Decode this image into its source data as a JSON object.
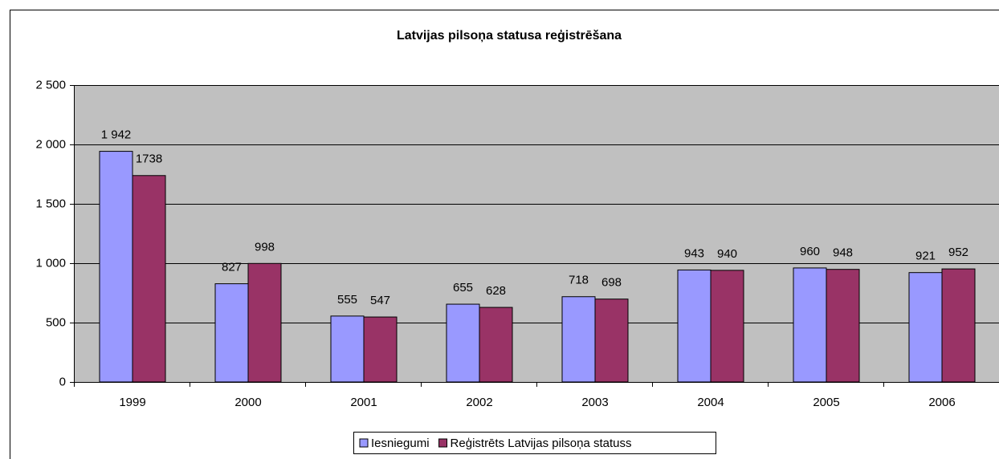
{
  "chart_data": {
    "type": "bar",
    "title": "Latvijas pilsoņa statusa reģistrēšana",
    "categories": [
      "1999",
      "2000",
      "2001",
      "2002",
      "2003",
      "2004",
      "2005",
      "2006"
    ],
    "series": [
      {
        "name": "Iesniegumi",
        "color": "#9999ff",
        "values": [
          1942,
          827,
          555,
          655,
          718,
          943,
          960,
          921
        ],
        "value_labels": [
          "1 942",
          "827",
          "555",
          "655",
          "718",
          "943",
          "960",
          "921"
        ]
      },
      {
        "name": "Reģistrēts Latvijas pilsoņa statuss",
        "color": "#993366",
        "values": [
          1738,
          998,
          547,
          628,
          698,
          940,
          948,
          952
        ],
        "value_labels": [
          "1738",
          "998",
          "547",
          "628",
          "698",
          "940",
          "948",
          "952"
        ]
      }
    ],
    "ylim": [
      0,
      2500
    ],
    "yticks": [
      0,
      500,
      {
        "value": 1000,
        "label": "1 000"
      },
      {
        "value": 1500,
        "label": "1 500"
      },
      {
        "value": 2000,
        "label": "2 000"
      },
      {
        "value": 2500,
        "label": "2 500"
      }
    ],
    "grid": true,
    "legend": "bottom"
  }
}
